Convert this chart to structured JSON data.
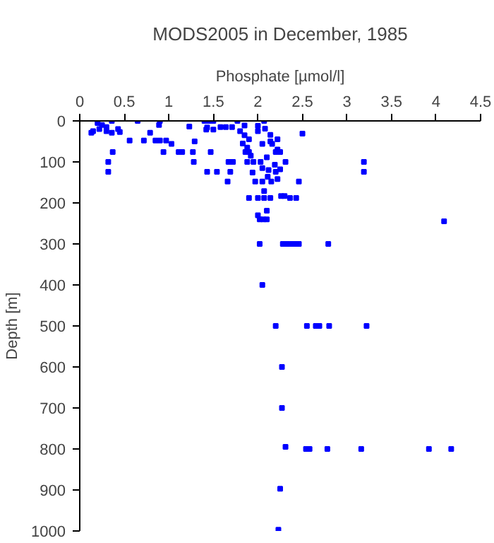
{
  "chart_data": {
    "type": "scatter",
    "title": "MODS2005 in December, 1985",
    "xlabel": "Phosphate [µmol/l]",
    "ylabel": "Depth [m]",
    "xlim": [
      0,
      4.5
    ],
    "xticks": [
      0,
      0.5,
      1,
      1.5,
      2,
      2.5,
      3,
      3.5,
      4,
      4.5
    ],
    "ylim": [
      1000,
      0
    ],
    "yticks": [
      0,
      100,
      200,
      300,
      400,
      500,
      600,
      700,
      800,
      900,
      1000
    ],
    "grid": false,
    "marker": "square",
    "series": [
      {
        "color": "#0000ff",
        "x": [
          0.2,
          0.25,
          0.22,
          0.3,
          0.15,
          0.3,
          0.13,
          0.36,
          0.36,
          0.43,
          0.45,
          0.37,
          0.32,
          0.32,
          0.56,
          0.65,
          0.72,
          0.79,
          0.85,
          0.9,
          0.97,
          0.89,
          0.9,
          0.94,
          1.03,
          1.11,
          1.15,
          1.23,
          1.27,
          1.28,
          1.29,
          1.4,
          1.45,
          1.5,
          1.43,
          1.42,
          1.5,
          1.47,
          1.43,
          1.54,
          1.58,
          1.64,
          1.71,
          1.66,
          1.69,
          1.67,
          1.72,
          1.77,
          1.85,
          1.8,
          1.85,
          1.9,
          1.83,
          1.88,
          1.92,
          1.86,
          1.9,
          2.0,
          2.0,
          2.07,
          2.08,
          2.14,
          2.14,
          2.22,
          2.16,
          2.05,
          2.22,
          2.5,
          2.2,
          2.25,
          2.1,
          1.88,
          1.95,
          2.03,
          2.31,
          3.19,
          3.19,
          1.94,
          2.05,
          2.12,
          2.2,
          2.25,
          2.19,
          2.11,
          2.22,
          1.97,
          2.05,
          2.15,
          2.46,
          2.07,
          1.9,
          2.0,
          2.07,
          2.14,
          2.26,
          2.3,
          2.36,
          2.43,
          2.1,
          2.0,
          2.02,
          2.06,
          2.1,
          4.09,
          2.02,
          2.28,
          2.33,
          2.38,
          2.42,
          2.46,
          2.79,
          2.05,
          2.2,
          2.55,
          2.65,
          2.69,
          2.8,
          3.22,
          2.27,
          2.27,
          2.31,
          2.54,
          2.58,
          2.78,
          3.16,
          3.92,
          4.17,
          2.25,
          2.23
        ],
        "values": [
          5,
          10,
          20,
          15,
          25,
          25,
          29,
          0,
          29,
          20,
          27,
          76,
          100,
          124,
          48,
          0,
          48,
          29,
          48,
          48,
          48,
          10,
          0,
          76,
          56,
          76,
          76,
          14,
          76,
          100,
          50,
          0,
          0,
          0,
          16,
          21,
          21,
          76,
          124,
          124,
          15,
          15,
          15,
          148,
          124,
          100,
          100,
          0,
          11,
          25,
          35,
          45,
          55,
          65,
          85,
          76,
          76,
          12,
          25,
          0,
          19,
          34,
          50,
          45,
          56,
          56,
          70,
          31,
          76,
          76,
          89,
          100,
          100,
          100,
          100,
          100,
          124,
          126,
          115,
          120,
          124,
          118,
          107,
          136,
          142,
          148,
          148,
          148,
          148,
          171,
          188,
          188,
          188,
          188,
          183,
          183,
          188,
          188,
          219,
          230,
          240,
          240,
          240,
          245,
          300,
          300,
          300,
          300,
          300,
          300,
          300,
          400,
          500,
          500,
          500,
          500,
          500,
          500,
          600,
          700,
          795,
          800,
          800,
          800,
          800,
          800,
          800,
          897,
          997
        ]
      }
    ]
  }
}
